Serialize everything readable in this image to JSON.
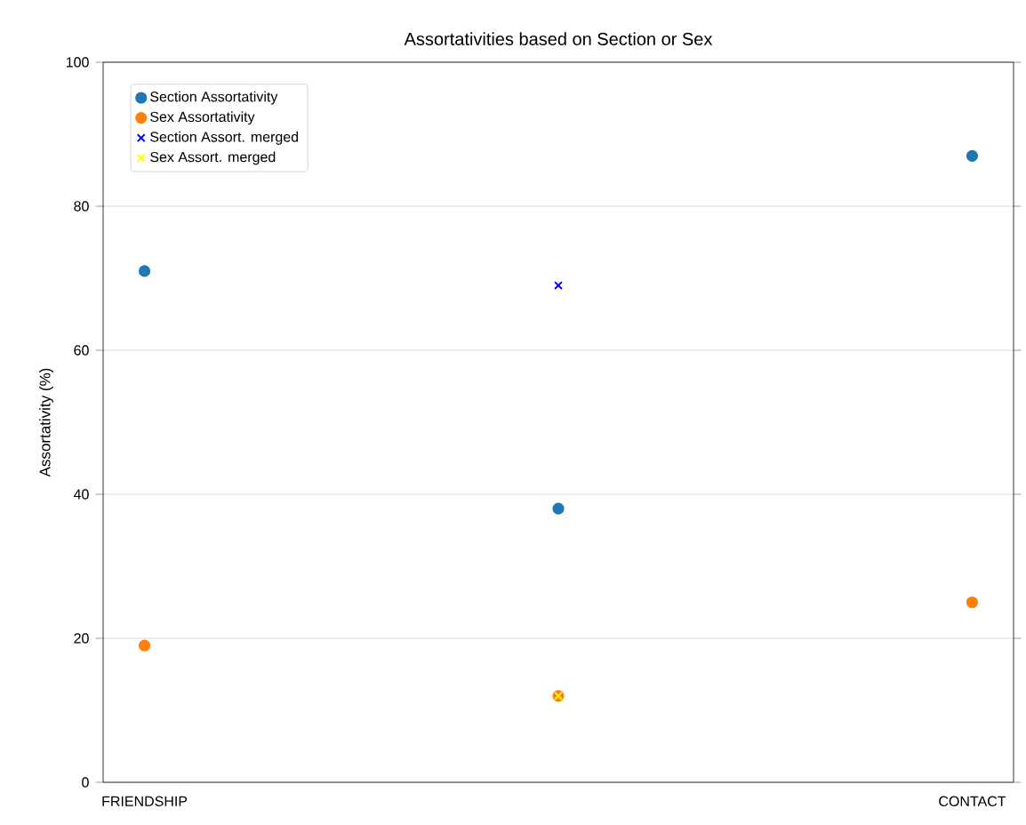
{
  "chart_data": {
    "type": "scatter",
    "title": "Assortativities based on Section or Sex",
    "ylabel": "Assortativity (%)",
    "categories": [
      "FRIENDSHIP",
      null,
      "CONTACT"
    ],
    "series": [
      {
        "name": "Section Assortativity",
        "color": "#1f77b4",
        "marker": "circle",
        "values": [
          71,
          38,
          87
        ]
      },
      {
        "name": "Sex Assortativity",
        "color": "#ff7f0e",
        "marker": "circle",
        "values": [
          19,
          12,
          25
        ]
      },
      {
        "name": "Section Assort. merged",
        "color": "#0000ff",
        "marker": "cross",
        "values": [
          null,
          69,
          null
        ]
      },
      {
        "name": "Sex Assort. merged",
        "color": "#ffff00",
        "marker": "cross",
        "values": [
          null,
          12,
          null
        ]
      }
    ],
    "ylim": [
      0,
      100
    ],
    "yticks": [
      0,
      20,
      40,
      60,
      80,
      100
    ],
    "grid": "y",
    "legend": "top left"
  }
}
